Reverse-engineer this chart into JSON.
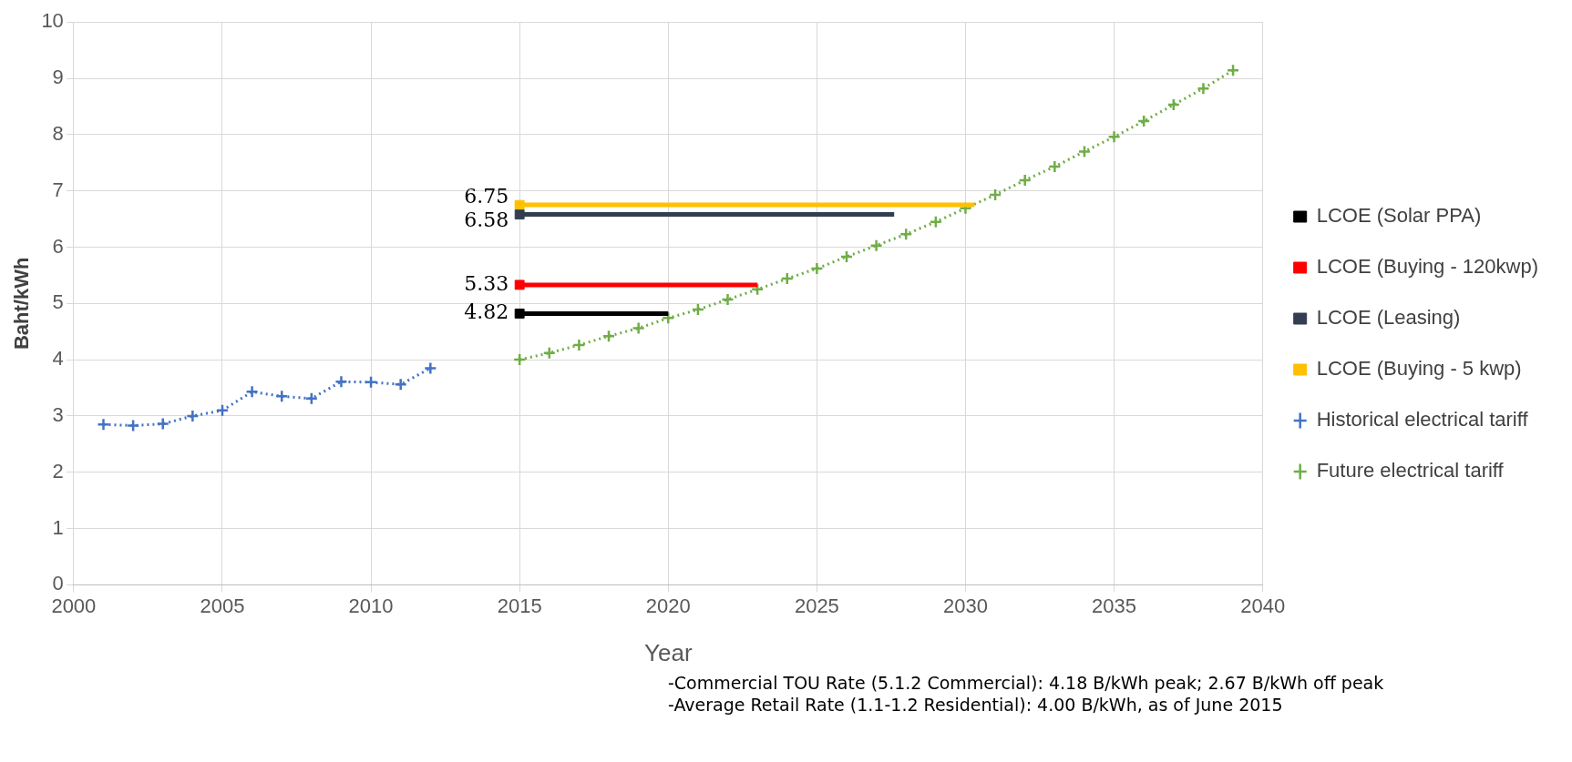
{
  "chart_data": {
    "type": "line",
    "xlabel": "Year",
    "ylabel": "Baht/kWh",
    "xlim": [
      2000,
      2040
    ],
    "xticks": [
      2000,
      2005,
      2010,
      2015,
      2020,
      2025,
      2030,
      2035,
      2040
    ],
    "ylim": [
      0,
      10
    ],
    "yticks": [
      0,
      1,
      2,
      3,
      4,
      5,
      6,
      7,
      8,
      9,
      10
    ],
    "grid": true,
    "legend": "right",
    "series": [
      {
        "name": "LCOE (Solar PPA)",
        "color": "#000000",
        "marker": "square",
        "line_style": "solid",
        "x": [
          2015,
          2020
        ],
        "values": [
          4.82,
          4.82
        ],
        "value_labels": [
          "4.82",
          null
        ]
      },
      {
        "name": "LCOE (Buying - 120kwp)",
        "color": "#ff0000",
        "marker": "square",
        "line_style": "solid",
        "x": [
          2015,
          2023
        ],
        "values": [
          5.33,
          5.33
        ],
        "value_labels": [
          "5.33",
          null
        ]
      },
      {
        "name": "LCOE (Leasing)",
        "color": "#333f50",
        "marker": "square",
        "line_style": "solid",
        "x": [
          2015,
          2027.6
        ],
        "values": [
          6.58,
          6.58
        ],
        "value_labels": [
          "6.58",
          null
        ]
      },
      {
        "name": "LCOE (Buying - 5 kwp)",
        "color": "#ffc000",
        "marker": "square",
        "line_style": "solid",
        "x": [
          2015,
          2030.3
        ],
        "values": [
          6.75,
          6.75
        ],
        "value_labels": [
          "6.75",
          null
        ]
      },
      {
        "name": "Historical electrical tariff",
        "color": "#4472c4",
        "marker": "cross",
        "line_style": "dotted",
        "x": [
          2001,
          2002,
          2003,
          2004,
          2005,
          2006,
          2007,
          2008,
          2009,
          2010,
          2011,
          2012
        ],
        "values": [
          2.85,
          2.83,
          2.86,
          3.0,
          3.1,
          3.43,
          3.35,
          3.31,
          3.61,
          3.6,
          3.56,
          3.85
        ]
      },
      {
        "name": "Future electrical tariff",
        "color": "#70ad47",
        "marker": "cross",
        "line_style": "dotted",
        "x": [
          2015,
          2016,
          2017,
          2018,
          2019,
          2020,
          2021,
          2022,
          2023,
          2024,
          2025,
          2026,
          2027,
          2028,
          2029,
          2030,
          2031,
          2032,
          2033,
          2034,
          2035,
          2036,
          2037,
          2038,
          2039
        ],
        "values": [
          4.0,
          4.12,
          4.26,
          4.42,
          4.56,
          4.74,
          4.89,
          5.07,
          5.25,
          5.44,
          5.62,
          5.83,
          6.03,
          6.23,
          6.45,
          6.69,
          6.93,
          7.19,
          7.43,
          7.7,
          7.96,
          8.24,
          8.53,
          8.82,
          9.14
        ]
      }
    ],
    "annotations": [
      "-Commercial TOU Rate (5.1.2 Commercial):  4.18 B/kWh peak; 2.67 B/kWh off peak",
      "-Average Retail Rate (1.1-1.2 Residential): 4.00 B/kWh, as of June 2015"
    ]
  }
}
